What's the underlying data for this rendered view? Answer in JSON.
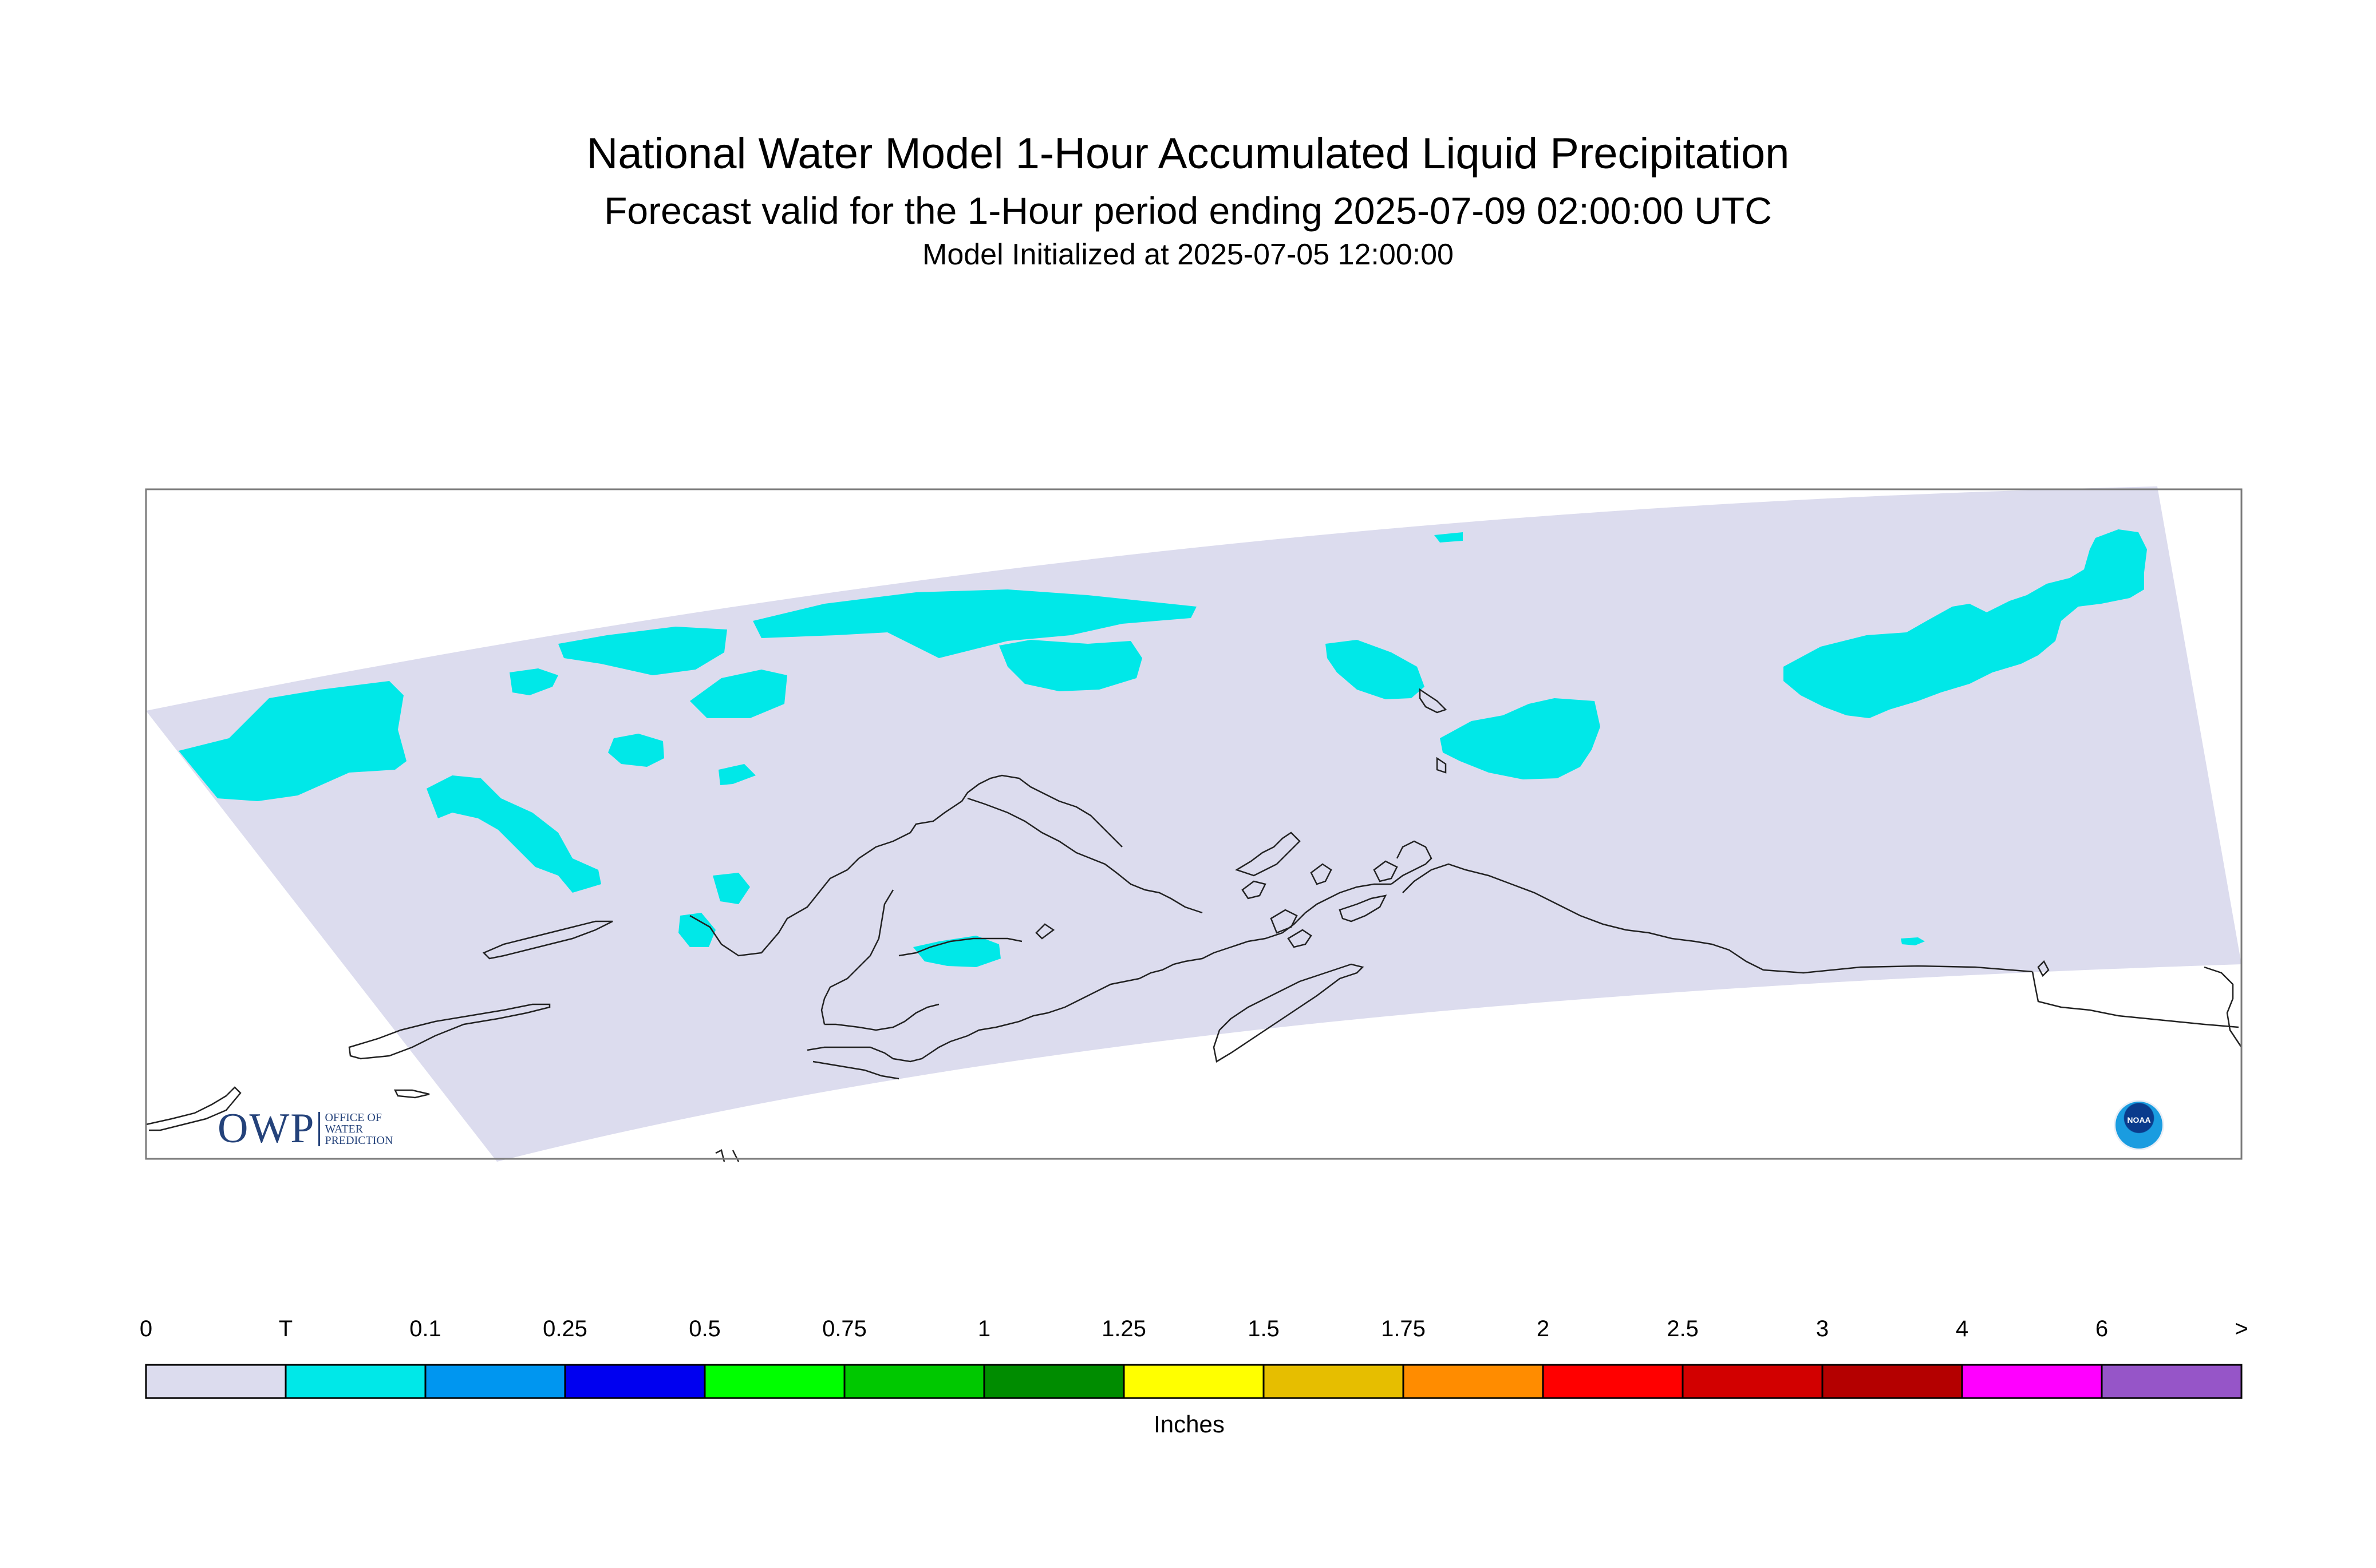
{
  "header": {
    "title": "National Water Model 1-Hour Accumulated Liquid Precipitation",
    "subtitle": "Forecast valid for the 1-Hour period ending 2025-07-09 02:00:00 UTC",
    "init_line": "Model Initialized at 2025-07-05 12:00:00"
  },
  "map": {
    "domain_fill": "#dcdcee",
    "precip_fill": "#00e8e8",
    "frame_color": "#7a7a7a",
    "coastline_color": "#222222"
  },
  "legend": {
    "units": "Inches",
    "ticks": [
      "0",
      "T",
      "0.1",
      "0.25",
      "0.5",
      "0.75",
      "1",
      "1.25",
      "1.5",
      "1.75",
      "2",
      "2.5",
      "3",
      "4",
      "6",
      ">"
    ],
    "colors": [
      "#dcdcee",
      "#00e8e8",
      "#0096f0",
      "#0000f0",
      "#00ff00",
      "#00c800",
      "#008c00",
      "#ffff00",
      "#e6be00",
      "#ff8c00",
      "#ff0000",
      "#d20000",
      "#b40000",
      "#ff00ff",
      "#9655c8"
    ]
  },
  "logos": {
    "owp_mark": "OWP",
    "owp_text": [
      "OFFICE OF",
      "WATER",
      "PREDICTION"
    ],
    "noaa_text": "NOAA",
    "owp_icon": "owp-logo-icon",
    "noaa_icon": "noaa-logo-icon"
  }
}
